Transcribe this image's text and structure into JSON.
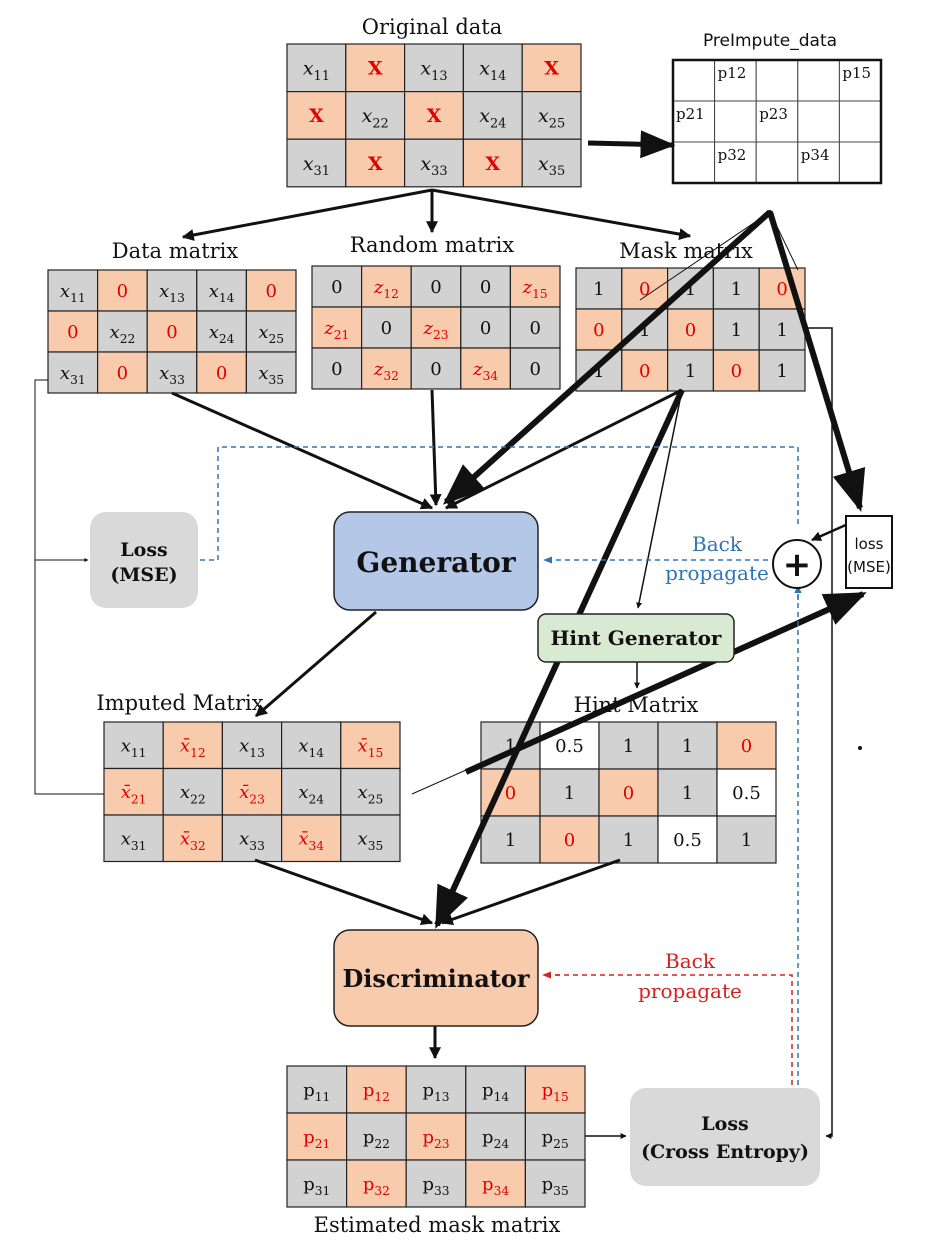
{
  "colors": {
    "gray_cell": "#d2d2d2",
    "orange_cell": "#f8cbad",
    "white_cell": "#ffffff",
    "red_text": "#e00000",
    "black_text": "#111111",
    "blue_dash": "#2e75b6",
    "red_dash": "#d62020",
    "generator_fill": "#b4c7e7",
    "discriminator_fill": "#f8cbad",
    "hint_fill": "#d9ead3",
    "loss_fill": "#d9d9d9"
  },
  "labels": {
    "original": "Original data",
    "preimpute": "PreImpute_data",
    "data_matrix": "Data matrix",
    "random_matrix": "Random matrix",
    "mask_matrix": "Mask matrix",
    "imputed_matrix": "Imputed Matrix",
    "hint_matrix": "Hint Matrix",
    "estimated_mask": "Estimated mask matrix"
  },
  "boxes": {
    "generator": "Generator",
    "discriminator": "Discriminator",
    "hint_generator": "Hint Generator",
    "loss_mse_line1": "Loss",
    "loss_mse_line2": "(MSE)",
    "loss_ce_line1": "Loss",
    "loss_ce_line2": "(Cross Entropy)",
    "loss_small_line1": "loss",
    "loss_small_line2": "(MSE)",
    "plus": "+"
  },
  "backprop": {
    "blue_line1": "Back",
    "blue_line2": "propagate",
    "red_line1": "Back",
    "red_line2": "propagate"
  },
  "original_cells": [
    [
      {
        "b": "x",
        "s": "11",
        "c": "g"
      },
      {
        "t": "X",
        "c": "o",
        "r": 1
      },
      {
        "b": "x",
        "s": "13",
        "c": "g"
      },
      {
        "b": "x",
        "s": "14",
        "c": "g"
      },
      {
        "t": "X",
        "c": "o",
        "r": 1
      }
    ],
    [
      {
        "t": "X",
        "c": "o",
        "r": 1
      },
      {
        "b": "x",
        "s": "22",
        "c": "g"
      },
      {
        "t": "X",
        "c": "o",
        "r": 1
      },
      {
        "b": "x",
        "s": "24",
        "c": "g"
      },
      {
        "b": "x",
        "s": "25",
        "c": "g"
      }
    ],
    [
      {
        "b": "x",
        "s": "31",
        "c": "g"
      },
      {
        "t": "X",
        "c": "o",
        "r": 1
      },
      {
        "b": "x",
        "s": "33",
        "c": "g"
      },
      {
        "t": "X",
        "c": "o",
        "r": 1
      },
      {
        "b": "x",
        "s": "35",
        "c": "g"
      }
    ]
  ],
  "preimpute_cells": [
    [
      "",
      "p12",
      "",
      "",
      "p15"
    ],
    [
      "p21",
      "",
      "p23",
      "",
      ""
    ],
    [
      "",
      "p32",
      "",
      "p34",
      ""
    ]
  ],
  "data_cells": [
    [
      {
        "b": "x",
        "s": "11",
        "c": "g"
      },
      {
        "t": "0",
        "c": "o",
        "r": 1
      },
      {
        "b": "x",
        "s": "13",
        "c": "g"
      },
      {
        "b": "x",
        "s": "14",
        "c": "g"
      },
      {
        "t": "0",
        "c": "o",
        "r": 1
      }
    ],
    [
      {
        "t": "0",
        "c": "o",
        "r": 1
      },
      {
        "b": "x",
        "s": "22",
        "c": "g"
      },
      {
        "t": "0",
        "c": "o",
        "r": 1
      },
      {
        "b": "x",
        "s": "24",
        "c": "g"
      },
      {
        "b": "x",
        "s": "25",
        "c": "g"
      }
    ],
    [
      {
        "b": "x",
        "s": "31",
        "c": "g"
      },
      {
        "t": "0",
        "c": "o",
        "r": 1
      },
      {
        "b": "x",
        "s": "33",
        "c": "g"
      },
      {
        "t": "0",
        "c": "o",
        "r": 1
      },
      {
        "b": "x",
        "s": "35",
        "c": "g"
      }
    ]
  ],
  "random_cells": [
    [
      {
        "t": "0",
        "c": "g"
      },
      {
        "b": "z",
        "s": "12",
        "c": "o",
        "r": 1
      },
      {
        "t": "0",
        "c": "g"
      },
      {
        "t": "0",
        "c": "g"
      },
      {
        "b": "z",
        "s": "15",
        "c": "o",
        "r": 1
      }
    ],
    [
      {
        "b": "z",
        "s": "21",
        "c": "o",
        "r": 1
      },
      {
        "t": "0",
        "c": "g"
      },
      {
        "b": "z",
        "s": "23",
        "c": "o",
        "r": 1
      },
      {
        "t": "0",
        "c": "g"
      },
      {
        "t": "0",
        "c": "g"
      }
    ],
    [
      {
        "t": "0",
        "c": "g"
      },
      {
        "b": "z",
        "s": "32",
        "c": "o",
        "r": 1
      },
      {
        "t": "0",
        "c": "g"
      },
      {
        "b": "z",
        "s": "34",
        "c": "o",
        "r": 1
      },
      {
        "t": "0",
        "c": "g"
      }
    ]
  ],
  "mask_cells": [
    [
      {
        "t": "1",
        "c": "g"
      },
      {
        "t": "0",
        "c": "o",
        "r": 1
      },
      {
        "t": "1",
        "c": "g"
      },
      {
        "t": "1",
        "c": "g"
      },
      {
        "t": "0",
        "c": "o",
        "r": 1
      }
    ],
    [
      {
        "t": "0",
        "c": "o",
        "r": 1
      },
      {
        "t": "1",
        "c": "g"
      },
      {
        "t": "0",
        "c": "o",
        "r": 1
      },
      {
        "t": "1",
        "c": "g"
      },
      {
        "t": "1",
        "c": "g"
      }
    ],
    [
      {
        "t": "1",
        "c": "g"
      },
      {
        "t": "0",
        "c": "o",
        "r": 1
      },
      {
        "t": "1",
        "c": "g"
      },
      {
        "t": "0",
        "c": "o",
        "r": 1
      },
      {
        "t": "1",
        "c": "g"
      }
    ]
  ],
  "imputed_cells": [
    [
      {
        "b": "x",
        "s": "11",
        "c": "g"
      },
      {
        "b": "x̄",
        "s": "12",
        "c": "o",
        "r": 1
      },
      {
        "b": "x",
        "s": "13",
        "c": "g"
      },
      {
        "b": "x",
        "s": "14",
        "c": "g"
      },
      {
        "b": "x̄",
        "s": "15",
        "c": "o",
        "r": 1
      }
    ],
    [
      {
        "b": "x̄",
        "s": "21",
        "c": "o",
        "r": 1
      },
      {
        "b": "x",
        "s": "22",
        "c": "g"
      },
      {
        "b": "x̄",
        "s": "23",
        "c": "o",
        "r": 1
      },
      {
        "b": "x",
        "s": "24",
        "c": "g"
      },
      {
        "b": "x",
        "s": "25",
        "c": "g"
      }
    ],
    [
      {
        "b": "x",
        "s": "31",
        "c": "g"
      },
      {
        "b": "x̄",
        "s": "32",
        "c": "o",
        "r": 1
      },
      {
        "b": "x",
        "s": "33",
        "c": "g"
      },
      {
        "b": "x̄",
        "s": "34",
        "c": "o",
        "r": 1
      },
      {
        "b": "x",
        "s": "35",
        "c": "g"
      }
    ]
  ],
  "hint_cells": [
    [
      {
        "t": "1",
        "c": "g"
      },
      {
        "t": "0.5",
        "c": "w"
      },
      {
        "t": "1",
        "c": "g"
      },
      {
        "t": "1",
        "c": "g"
      },
      {
        "t": "0",
        "c": "o",
        "r": 1
      }
    ],
    [
      {
        "t": "0",
        "c": "o",
        "r": 1
      },
      {
        "t": "1",
        "c": "g"
      },
      {
        "t": "0",
        "c": "o",
        "r": 1
      },
      {
        "t": "1",
        "c": "g"
      },
      {
        "t": "0.5",
        "c": "w"
      }
    ],
    [
      {
        "t": "1",
        "c": "g"
      },
      {
        "t": "0",
        "c": "o",
        "r": 1
      },
      {
        "t": "1",
        "c": "g"
      },
      {
        "t": "0.5",
        "c": "w"
      },
      {
        "t": "1",
        "c": "g"
      }
    ]
  ],
  "estimated_cells": [
    [
      {
        "b": "p",
        "s": "11",
        "c": "g"
      },
      {
        "b": "p",
        "s": "12",
        "c": "o",
        "r": 1
      },
      {
        "b": "p",
        "s": "13",
        "c": "g"
      },
      {
        "b": "p",
        "s": "14",
        "c": "g"
      },
      {
        "b": "p",
        "s": "15",
        "c": "o",
        "r": 1
      }
    ],
    [
      {
        "b": "p",
        "s": "21",
        "c": "o",
        "r": 1
      },
      {
        "b": "p",
        "s": "22",
        "c": "g"
      },
      {
        "b": "p",
        "s": "23",
        "c": "o",
        "r": 1
      },
      {
        "b": "p",
        "s": "24",
        "c": "g"
      },
      {
        "b": "p",
        "s": "25",
        "c": "g"
      }
    ],
    [
      {
        "b": "p",
        "s": "31",
        "c": "g"
      },
      {
        "b": "p",
        "s": "32",
        "c": "o",
        "r": 1
      },
      {
        "b": "p",
        "s": "33",
        "c": "g"
      },
      {
        "b": "p",
        "s": "34",
        "c": "o",
        "r": 1
      },
      {
        "b": "p",
        "s": "35",
        "c": "g"
      }
    ]
  ]
}
